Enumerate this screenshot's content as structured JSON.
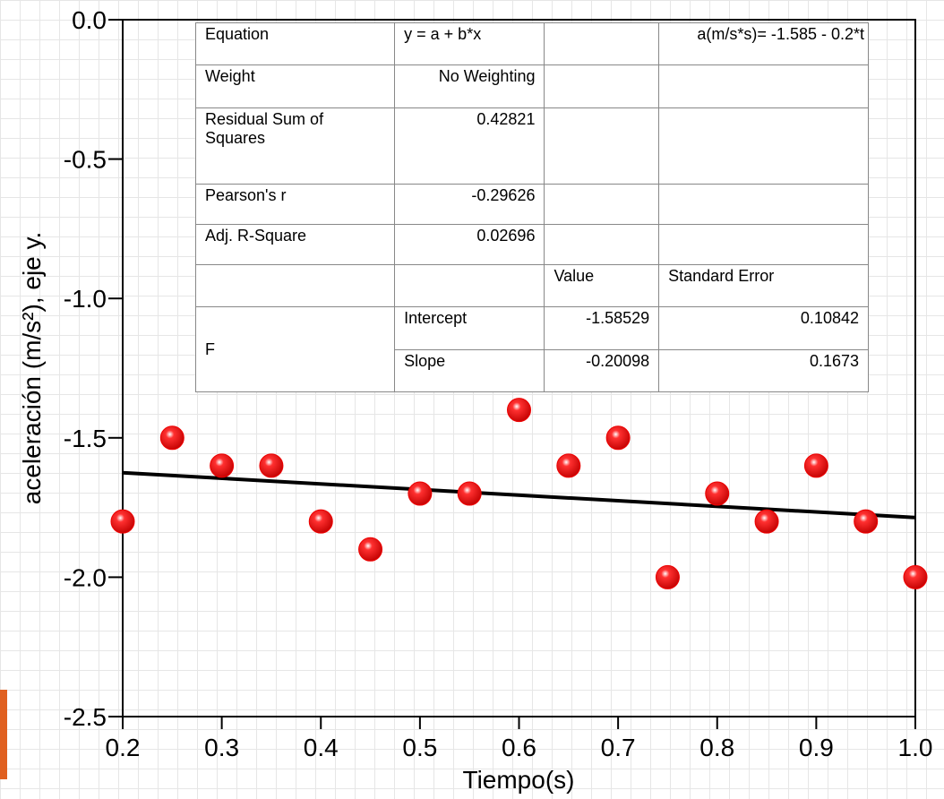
{
  "chart_data": {
    "type": "scatter",
    "x_label": "Tiempo(s)",
    "y_label": "aceleración (m/s²), eje y.",
    "x": [
      0.2,
      0.25,
      0.3,
      0.35,
      0.4,
      0.45,
      0.5,
      0.55,
      0.6,
      0.65,
      0.7,
      0.75,
      0.8,
      0.85,
      0.9,
      0.95,
      1.0
    ],
    "values": [
      -1.8,
      -1.5,
      -1.6,
      -1.6,
      -1.8,
      -1.9,
      -1.7,
      -1.7,
      -1.4,
      -1.6,
      -1.5,
      -2.0,
      -1.7,
      -1.8,
      -1.6,
      -1.8,
      -2.0
    ],
    "color": "#ee0000",
    "fit_line": {
      "x": [
        0.2,
        1.0
      ],
      "values": [
        -1.625,
        -1.786
      ],
      "color": "#000000"
    },
    "xlim": [
      0.2,
      1.0
    ],
    "ylim": [
      -2.5,
      0
    ],
    "xticks": [
      0.2,
      0.3,
      0.4,
      0.5,
      0.6,
      0.7,
      0.8,
      0.9,
      {
        "value": 1,
        "label": "1.0"
      }
    ],
    "yticks": [
      {
        "value": 0,
        "label": "0.0"
      },
      -0.5,
      {
        "value": -1,
        "label": "-1.0"
      },
      -1.5,
      {
        "value": -2,
        "label": "-2.0"
      },
      -2.5
    ],
    "table": [
      [
        "Equation",
        "y = a + b*x",
        null,
        "a(m/s*s)= -1.585 - 0.2*t"
      ],
      [
        "Weight",
        "No Weighting",
        null,
        null
      ],
      [
        "Residual Sum of Squares",
        "0.42821",
        null,
        null
      ],
      [
        "Pearson's r",
        "-0.29626",
        null,
        null
      ],
      [
        "Adj. R-Square",
        "0.02696",
        null,
        null
      ],
      [
        null,
        null,
        "Value",
        "Standard Error"
      ],
      [
        "F",
        "Intercept",
        "-1.58529",
        "0.10842"
      ],
      [
        null,
        "Slope",
        "-0.20098",
        "0.1673"
      ]
    ]
  }
}
